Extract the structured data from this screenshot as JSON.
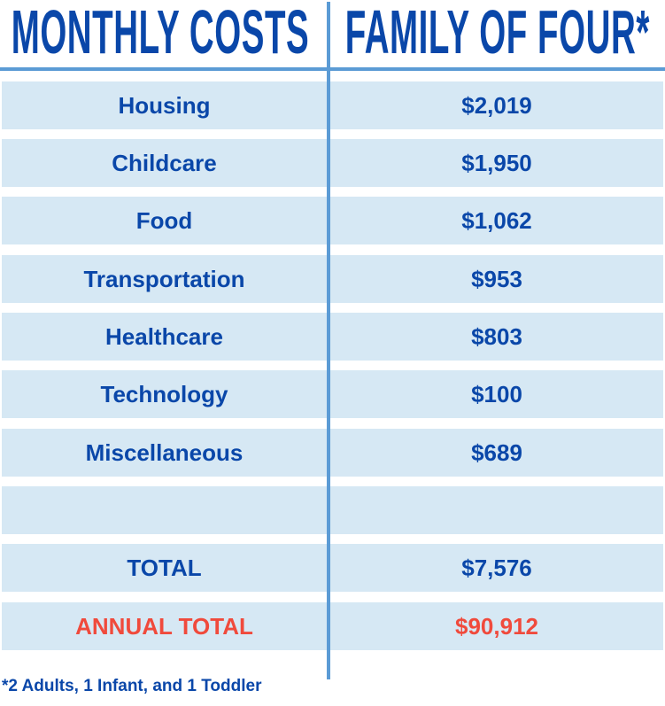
{
  "header": {
    "left": "MONTHLY COSTS",
    "right": "FAMILY OF FOUR*"
  },
  "rows": [
    {
      "label": "Housing",
      "value": "$2,019"
    },
    {
      "label": "Childcare",
      "value": "$1,950"
    },
    {
      "label": "Food",
      "value": "$1,062"
    },
    {
      "label": "Transportation",
      "value": "$953"
    },
    {
      "label": "Healthcare",
      "value": "$803"
    },
    {
      "label": "Technology",
      "value": "$100"
    },
    {
      "label": "Miscellaneous",
      "value": "$689"
    },
    {
      "label": "",
      "value": ""
    },
    {
      "label": "TOTAL",
      "value": "$7,576"
    },
    {
      "label": "ANNUAL TOTAL",
      "value": "$90,912"
    }
  ],
  "footnote": "*2 Adults, 1 Infant, and 1 Toddler",
  "colors": {
    "text": "#0a47a9",
    "highlight": "#f04a3c",
    "row_bg": "#d6e8f4",
    "rule": "#5b9bd5"
  }
}
